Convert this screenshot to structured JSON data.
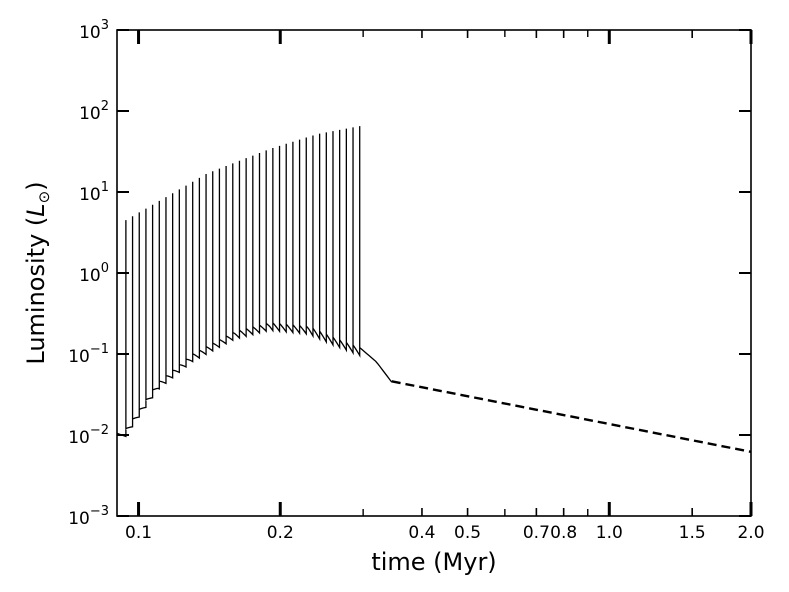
{
  "chart_data": {
    "type": "line",
    "title": "",
    "xlabel": "time (Myr)",
    "ylabel_prefix": "Luminosity (",
    "ylabel_symbol": "L",
    "ylabel_sub": "⊙",
    "ylabel_suffix": ")",
    "x_scale": "log",
    "y_scale": "log",
    "xlim": [
      0.09,
      2.0
    ],
    "ylim": [
      0.001,
      1000
    ],
    "grid": false,
    "x_ticks": [
      {
        "value": 0.1,
        "label": "0.1"
      },
      {
        "value": 0.2,
        "label": "0.2"
      },
      {
        "value": 0.4,
        "label": "0.4"
      },
      {
        "value": 0.5,
        "label": "0.5"
      },
      {
        "value": 0.7,
        "label": "0.7"
      },
      {
        "value": 0.8,
        "label": "0.8"
      },
      {
        "value": 1.0,
        "label": "1.0"
      },
      {
        "value": 1.5,
        "label": "1.5"
      },
      {
        "value": 2.0,
        "label": "2.0"
      }
    ],
    "y_ticks": [
      {
        "value": 0.001,
        "mantissa": "10",
        "exp": "−3"
      },
      {
        "value": 0.01,
        "mantissa": "10",
        "exp": "−2"
      },
      {
        "value": 0.1,
        "mantissa": "10",
        "exp": "−1"
      },
      {
        "value": 1,
        "mantissa": "10",
        "exp": "0"
      },
      {
        "value": 10,
        "mantissa": "10",
        "exp": "1"
      },
      {
        "value": 100,
        "mantissa": "10",
        "exp": "2"
      },
      {
        "value": 1000,
        "mantissa": "10",
        "exp": "3"
      }
    ],
    "series": [
      {
        "style": "solid",
        "color": "#000000",
        "burst_count": 36,
        "burst_start_time": 0.094,
        "burst_end_time": 0.295,
        "baseline_points": [
          [
            0.0899,
            0.0105
          ],
          [
            0.094,
            0.012
          ],
          [
            0.11,
            0.045
          ],
          [
            0.13,
            0.1
          ],
          [
            0.16,
            0.19
          ],
          [
            0.19,
            0.245
          ],
          [
            0.23,
            0.22
          ],
          [
            0.26,
            0.16
          ],
          [
            0.295,
            0.12
          ],
          [
            0.32,
            0.08
          ],
          [
            0.345,
            0.045
          ]
        ],
        "peak_points": [
          [
            0.094,
            4.5
          ],
          [
            0.14,
            17
          ],
          [
            0.19,
            34
          ],
          [
            0.24,
            52
          ],
          [
            0.295,
            65
          ]
        ]
      },
      {
        "style": "dashed",
        "color": "#000000",
        "points": [
          [
            0.345,
            0.046
          ],
          [
            2.0,
            0.0062
          ]
        ]
      }
    ]
  }
}
